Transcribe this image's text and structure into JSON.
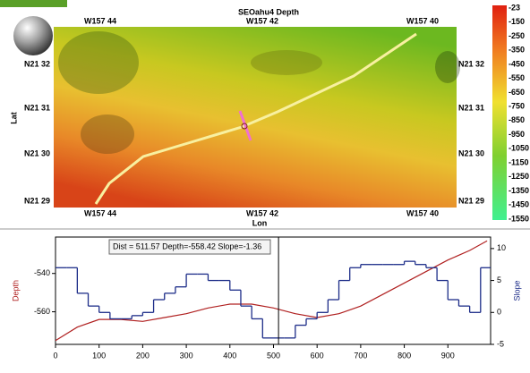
{
  "map": {
    "title": "SEOahu4 Depth",
    "x_label": "Lon",
    "y_label": "Lat",
    "x_ticks": [
      "W157 44",
      "W157 42",
      "W157 40"
    ],
    "y_ticks": [
      "N21 32",
      "N21 31",
      "N21 30",
      "N21 29"
    ],
    "colorbar_labels": [
      -23,
      -150,
      -250,
      -350,
      -450,
      -550,
      -650,
      -750,
      -850,
      -950,
      -1050,
      -1150,
      -1250,
      -1350,
      -1450,
      -1550
    ]
  },
  "chart_data": {
    "type": "line",
    "y_label": "Depth",
    "y2_label": "Slope",
    "annotation": "Dist = 511.57 Depth=-558.42 Slope=-1.36",
    "cursor_x": 511.57,
    "xlim": [
      0,
      998
    ],
    "xticks": [
      0,
      100,
      200,
      300,
      400,
      500,
      600,
      700,
      800,
      900
    ],
    "ylim": [
      -577,
      -521
    ],
    "yticks": [
      -540,
      -560
    ],
    "y2lim": [
      -5,
      11.8
    ],
    "y2ticks": [
      10,
      5,
      0,
      -5
    ],
    "series": [
      {
        "color": "#b02020",
        "x": [
          0,
          50,
          100,
          150,
          200,
          250,
          300,
          350,
          400,
          450,
          500,
          550,
          600,
          650,
          700,
          750,
          800,
          850,
          900,
          950,
          990
        ],
        "values": [
          -575,
          -568,
          -564,
          -564,
          -565,
          -563,
          -561,
          -558,
          -556,
          -556,
          -558,
          -561,
          -563,
          -561,
          -557,
          -551,
          -545,
          -539,
          -533,
          -528,
          -523
        ]
      },
      {
        "color": "#1c2c88",
        "axis": "y2",
        "step": true,
        "x": [
          0,
          25,
          50,
          75,
          100,
          125,
          150,
          175,
          200,
          225,
          250,
          275,
          300,
          325,
          350,
          375,
          400,
          425,
          450,
          475,
          500,
          525,
          550,
          575,
          600,
          625,
          650,
          675,
          700,
          725,
          750,
          775,
          800,
          825,
          850,
          875,
          900,
          925,
          950,
          975
        ],
        "values": [
          7,
          7,
          3,
          1,
          0,
          -1,
          -1,
          -0.5,
          0,
          2,
          3,
          4,
          6,
          6,
          5,
          5,
          3.5,
          1,
          -1,
          -4,
          -4,
          -4,
          -2,
          -1,
          0,
          2,
          5,
          7,
          7.5,
          7.5,
          7.5,
          7.5,
          8,
          7.5,
          7,
          5,
          2,
          1,
          0,
          7
        ]
      }
    ]
  }
}
